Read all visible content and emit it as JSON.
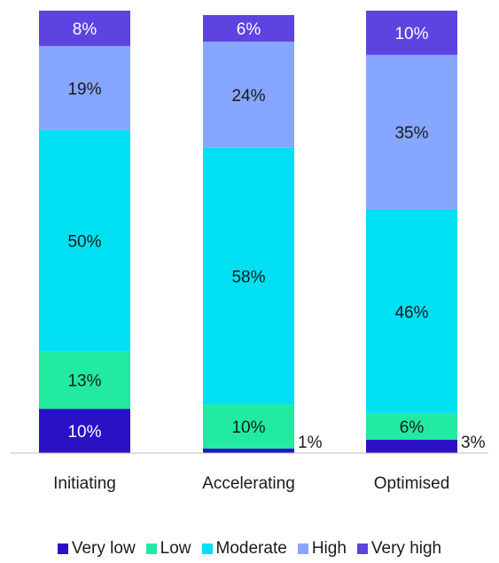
{
  "chart_data": {
    "type": "bar",
    "stacked": true,
    "categories": [
      "Initiating",
      "Accelerating",
      "Optimised"
    ],
    "series": [
      {
        "name": "Very low",
        "color": "#2a12c4",
        "values": [
          10,
          1,
          3
        ],
        "labels": [
          "10%",
          "1%",
          "3%"
        ]
      },
      {
        "name": "Low",
        "color": "#22eaa0",
        "values": [
          13,
          10,
          6
        ],
        "labels": [
          "13%",
          "10%",
          "6%"
        ]
      },
      {
        "name": "Moderate",
        "color": "#00e0f2",
        "values": [
          50,
          58,
          46
        ],
        "labels": [
          "50%",
          "58%",
          "46%"
        ]
      },
      {
        "name": "High",
        "color": "#86a6ff",
        "values": [
          19,
          24,
          35
        ],
        "labels": [
          "19%",
          "24%",
          "35%"
        ]
      },
      {
        "name": "Very high",
        "color": "#5d43e0",
        "values": [
          8,
          6,
          10
        ],
        "labels": [
          "8%",
          "6%",
          "10%"
        ]
      }
    ],
    "ylim": [
      0,
      100
    ],
    "legend_position": "bottom",
    "grid": false
  }
}
